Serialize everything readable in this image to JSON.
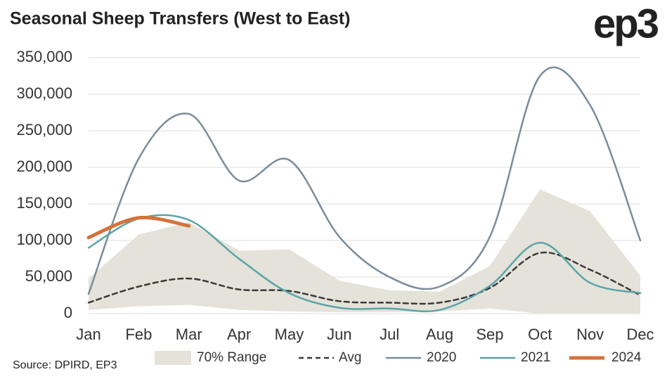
{
  "chart_data": {
    "type": "line",
    "title": "Seasonal Sheep Transfers (West to East)",
    "logo": "ep3",
    "source": "Source: DPIRD, EP3",
    "categories": [
      "Jan",
      "Feb",
      "Mar",
      "Apr",
      "May",
      "Jun",
      "Jul",
      "Aug",
      "Sep",
      "Oct",
      "Nov",
      "Dec"
    ],
    "ylim": [
      0,
      350000
    ],
    "yticks": [
      0,
      {
        "value": 50000,
        "label": "50,000"
      },
      {
        "value": 100000,
        "label": "100,000"
      },
      {
        "value": 150000,
        "label": "150,000"
      },
      {
        "value": 200000,
        "label": "200,000"
      },
      {
        "value": 250000,
        "label": "250,000"
      },
      {
        "value": 300000,
        "label": "300,000"
      },
      {
        "value": 350000,
        "label": "350,000"
      }
    ],
    "grid": true,
    "range": {
      "name": "70% Range",
      "color": "#e4e2d9",
      "upper": [
        48000,
        108000,
        125000,
        86000,
        88000,
        45000,
        32000,
        30000,
        65000,
        170000,
        140000,
        52000
      ],
      "lower": [
        5000,
        10000,
        12000,
        5000,
        3000,
        2000,
        2000,
        3000,
        7000,
        0,
        0,
        0
      ]
    },
    "series": [
      {
        "name": "Avg",
        "color": "#3a3a3a",
        "dashed": true,
        "width": 2.5,
        "values": [
          15000,
          37000,
          48000,
          33000,
          31000,
          17000,
          15000,
          15000,
          35000,
          83000,
          60000,
          25000
        ]
      },
      {
        "name": "2020",
        "color": "#7a8c9b",
        "width": 2.5,
        "values": [
          27000,
          212000,
          273000,
          182000,
          210000,
          105000,
          50000,
          37000,
          105000,
          325000,
          285000,
          100000
        ]
      },
      {
        "name": "2021",
        "color": "#5aa3a8",
        "width": 2.5,
        "values": [
          90000,
          130000,
          128000,
          75000,
          28000,
          8000,
          7000,
          5000,
          38000,
          97000,
          42000,
          28000
        ]
      },
      {
        "name": "2024",
        "color": "#d4733a",
        "width": 5,
        "values": [
          104000,
          131000,
          120000,
          null,
          null,
          null,
          null,
          null,
          null,
          null,
          null,
          null
        ]
      }
    ]
  }
}
